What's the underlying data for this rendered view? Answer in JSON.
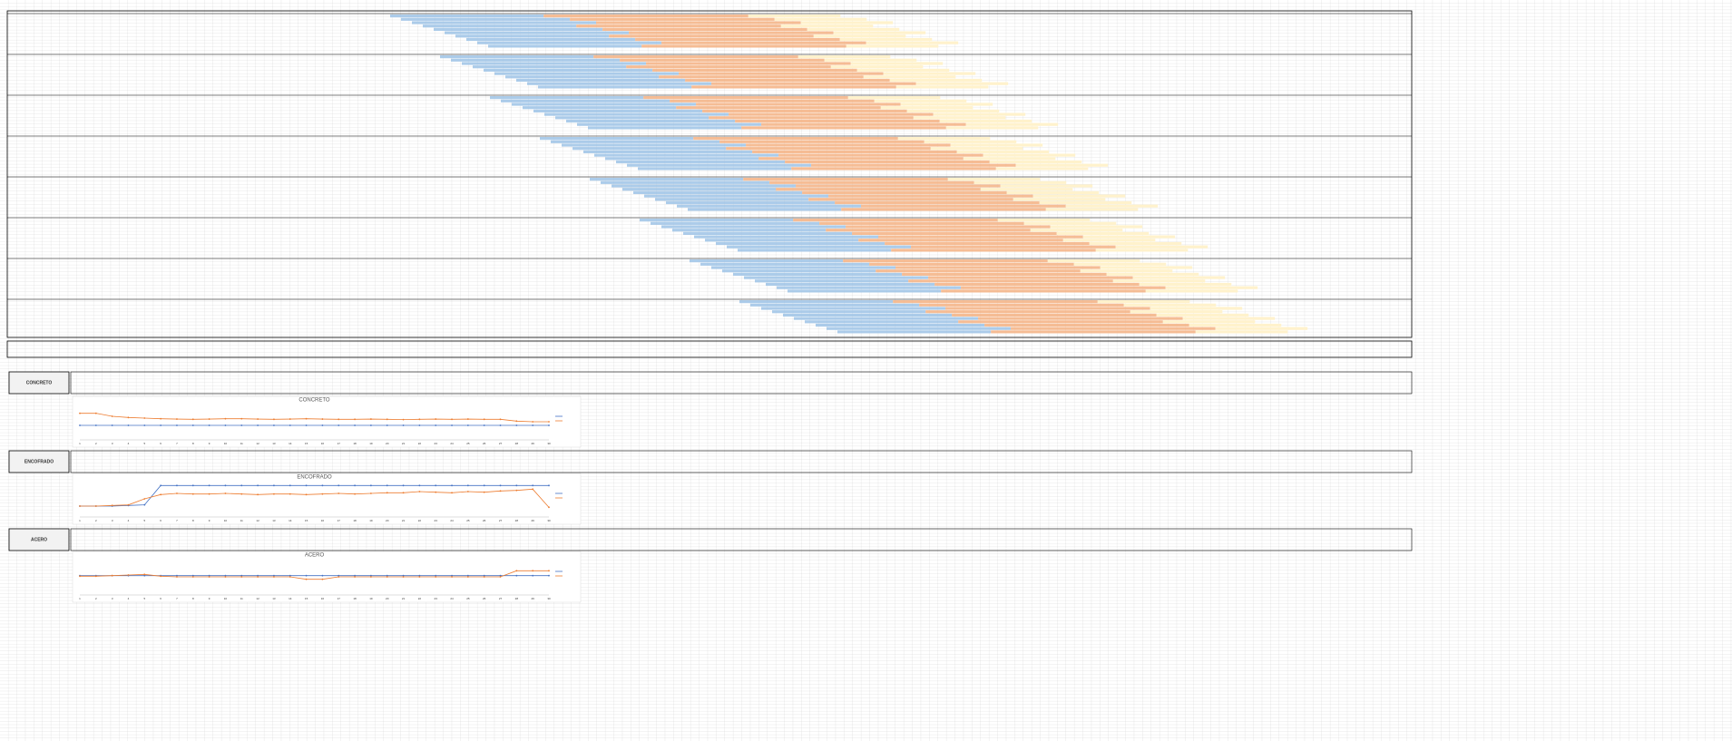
{
  "sections": [
    {
      "label": "CONCRETO"
    },
    {
      "label": "ENCOFRADO"
    },
    {
      "label": "ACERO"
    }
  ],
  "chart_data": [
    {
      "type": "line",
      "title": "CONCRETO",
      "ylim": [
        0,
        3
      ],
      "x": [
        1,
        2,
        3,
        4,
        5,
        6,
        7,
        8,
        9,
        10,
        11,
        12,
        13,
        14,
        15,
        16,
        17,
        18,
        19,
        20,
        21,
        22,
        23,
        24,
        25,
        26,
        27,
        28,
        29,
        30
      ],
      "series": [
        {
          "color": "#4472c4",
          "values": [
            1.2,
            1.2,
            1.2,
            1.2,
            1.2,
            1.2,
            1.2,
            1.2,
            1.2,
            1.2,
            1.2,
            1.2,
            1.2,
            1.2,
            1.2,
            1.2,
            1.2,
            1.2,
            1.2,
            1.2,
            1.2,
            1.2,
            1.2,
            1.2,
            1.2,
            1.2,
            1.2,
            1.2,
            1.2,
            1.2
          ]
        },
        {
          "color": "#ed7d31",
          "values": [
            2.2,
            2.2,
            1.95,
            1.85,
            1.8,
            1.75,
            1.72,
            1.7,
            1.72,
            1.75,
            1.75,
            1.72,
            1.7,
            1.72,
            1.75,
            1.72,
            1.7,
            1.7,
            1.72,
            1.7,
            1.68,
            1.7,
            1.72,
            1.7,
            1.72,
            1.7,
            1.7,
            1.55,
            1.5,
            1.5
          ]
        }
      ]
    },
    {
      "type": "line",
      "title": "ENCOFRADO",
      "ylim": [
        0,
        3
      ],
      "x": [
        1,
        2,
        3,
        4,
        5,
        6,
        7,
        8,
        9,
        10,
        11,
        12,
        13,
        14,
        15,
        16,
        17,
        18,
        19,
        20,
        21,
        22,
        23,
        24,
        25,
        26,
        27,
        28,
        29,
        30
      ],
      "series": [
        {
          "color": "#4472c4",
          "values": [
            0.9,
            0.9,
            0.9,
            0.95,
            1.0,
            2.6,
            2.6,
            2.6,
            2.6,
            2.6,
            2.6,
            2.6,
            2.6,
            2.6,
            2.6,
            2.6,
            2.6,
            2.6,
            2.6,
            2.6,
            2.6,
            2.6,
            2.6,
            2.6,
            2.6,
            2.6,
            2.6,
            2.6,
            2.6,
            2.6
          ]
        },
        {
          "color": "#ed7d31",
          "values": [
            0.9,
            0.9,
            0.95,
            1.0,
            1.5,
            1.85,
            1.95,
            1.9,
            1.9,
            1.95,
            1.9,
            1.85,
            1.9,
            1.9,
            1.85,
            1.9,
            1.95,
            1.9,
            1.95,
            2.0,
            2.0,
            2.1,
            2.05,
            2.0,
            2.1,
            2.05,
            2.15,
            2.2,
            2.3,
            0.8
          ]
        }
      ]
    },
    {
      "type": "line",
      "title": "ACERO",
      "ylim": [
        0,
        3
      ],
      "x": [
        1,
        2,
        3,
        4,
        5,
        6,
        7,
        8,
        9,
        10,
        11,
        12,
        13,
        14,
        15,
        16,
        17,
        18,
        19,
        20,
        21,
        22,
        23,
        24,
        25,
        26,
        27,
        28,
        29,
        30
      ],
      "series": [
        {
          "color": "#4472c4",
          "values": [
            1.6,
            1.6,
            1.6,
            1.6,
            1.6,
            1.6,
            1.6,
            1.6,
            1.6,
            1.6,
            1.6,
            1.6,
            1.6,
            1.6,
            1.6,
            1.6,
            1.6,
            1.6,
            1.6,
            1.6,
            1.6,
            1.6,
            1.6,
            1.6,
            1.6,
            1.6,
            1.6,
            1.6,
            1.6,
            1.6
          ]
        },
        {
          "color": "#ed7d31",
          "values": [
            1.55,
            1.55,
            1.6,
            1.65,
            1.7,
            1.55,
            1.5,
            1.5,
            1.5,
            1.5,
            1.5,
            1.5,
            1.5,
            1.5,
            1.3,
            1.3,
            1.5,
            1.5,
            1.5,
            1.5,
            1.5,
            1.5,
            1.5,
            1.5,
            1.5,
            1.5,
            1.5,
            2.0,
            2.0,
            2.0
          ]
        }
      ]
    }
  ]
}
